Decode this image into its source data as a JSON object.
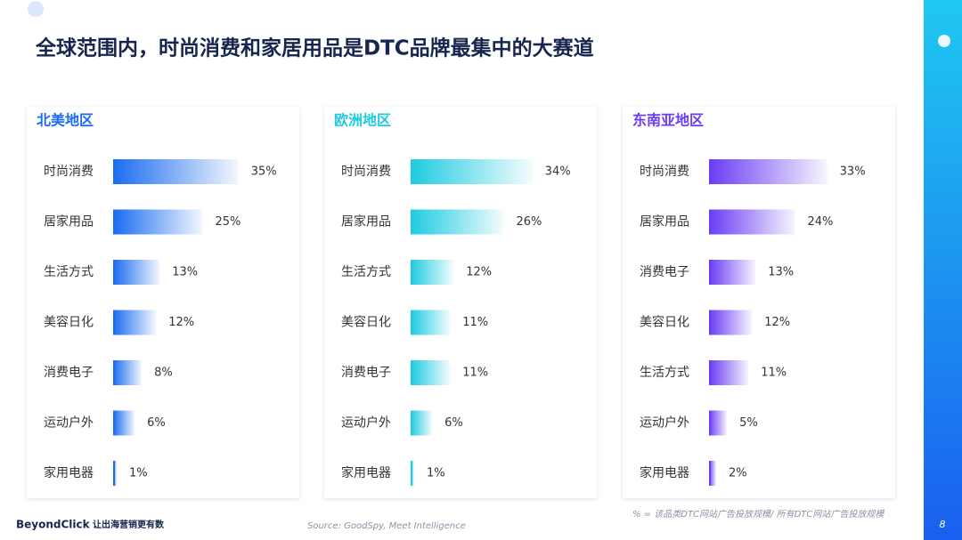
{
  "title": "全球范围内，时尚消费和家居用品是DTC品牌最集中的大赛道",
  "chart_data": [
    {
      "type": "bar",
      "title": "北美地区",
      "color": "#1a6cf0",
      "categories": [
        "时尚消费",
        "居家用品",
        "生活方式",
        "美容日化",
        "消费电子",
        "运动户外",
        "家用电器"
      ],
      "values": [
        35,
        25,
        13,
        12,
        8,
        6,
        1
      ],
      "value_labels": [
        "35%",
        "25%",
        "13%",
        "12%",
        "8%",
        "6%",
        "1%"
      ]
    },
    {
      "type": "bar",
      "title": "欧洲地区",
      "color": "#1ecbe1",
      "categories": [
        "时尚消费",
        "居家用品",
        "生活方式",
        "美容日化",
        "消费电子",
        "运动户外",
        "家用电器"
      ],
      "values": [
        34,
        26,
        12,
        11,
        11,
        6,
        1
      ],
      "value_labels": [
        "34%",
        "26%",
        "12%",
        "11%",
        "11%",
        "6%",
        "1%"
      ]
    },
    {
      "type": "bar",
      "title": "东南亚地区",
      "color": "#6a3cf5",
      "categories": [
        "时尚消费",
        "居家用品",
        "消费电子",
        "美容日化",
        "生活方式",
        "运动户外",
        "家用电器"
      ],
      "values": [
        33,
        24,
        13,
        12,
        11,
        5,
        2
      ],
      "value_labels": [
        "33%",
        "24%",
        "13%",
        "12%",
        "11%",
        "5%",
        "2%"
      ]
    }
  ],
  "footer": {
    "logo": "BeyondClick",
    "slogan": "让出海营销更有数",
    "source": "Source: GoodSpy, Meet Intelligence",
    "note": "% = 该品类DTC网站广告投放规模/ 所有DTC网站广告投放规模",
    "page": "8"
  }
}
